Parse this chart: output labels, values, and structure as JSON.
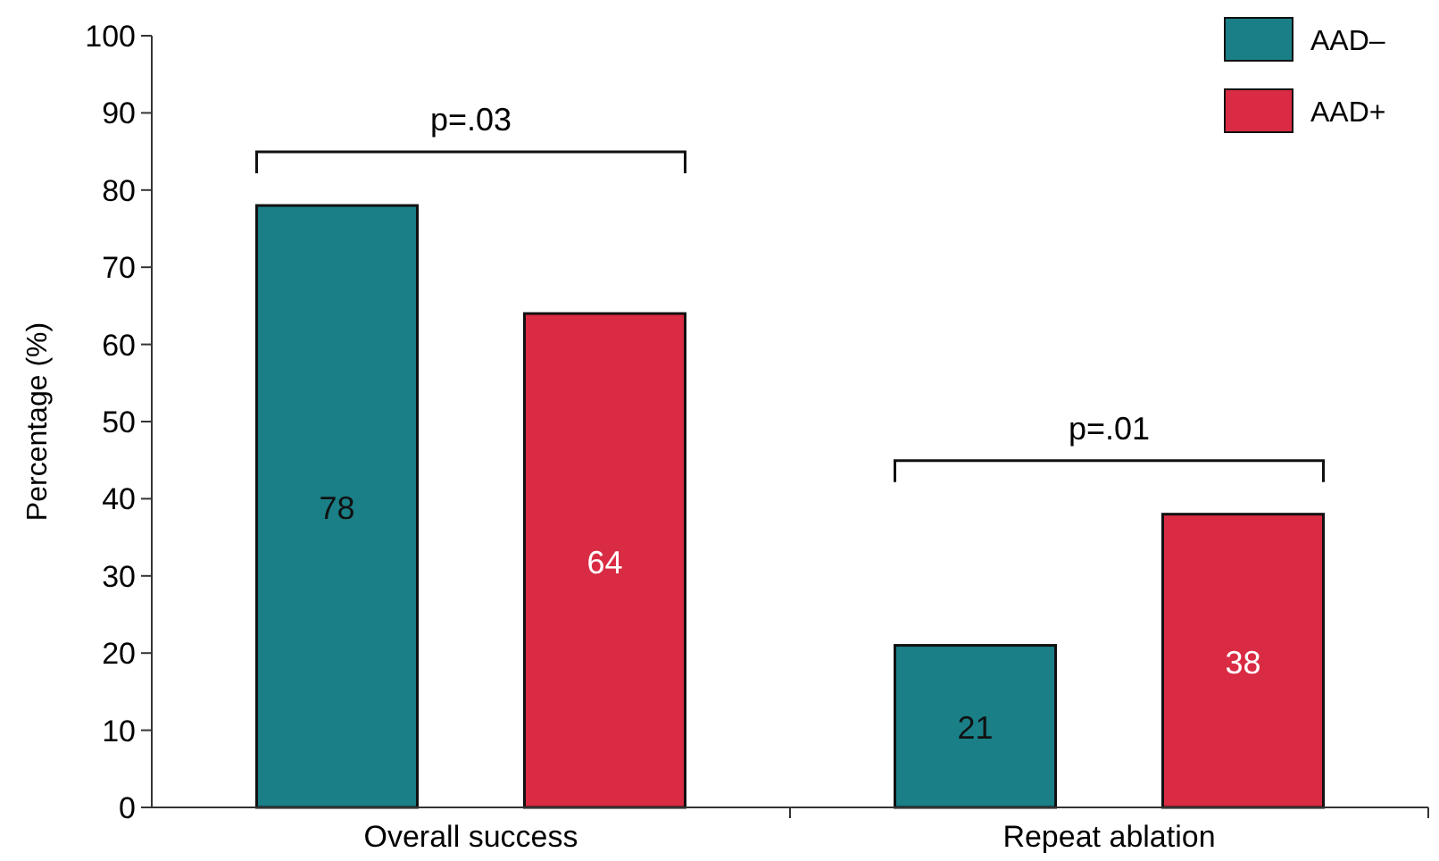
{
  "chart_data": {
    "type": "bar",
    "ylabel": "Percentage (%)",
    "categories": [
      "Overall success",
      "Repeat ablation"
    ],
    "series": [
      {
        "name": "AAD–",
        "color": "#1a7f86",
        "values": [
          78,
          21
        ]
      },
      {
        "name": "AAD+",
        "color": "#d92b43",
        "values": [
          64,
          38
        ]
      }
    ],
    "ylim": [
      0,
      100
    ],
    "yticks": [
      0,
      10,
      20,
      30,
      40,
      50,
      60,
      70,
      80,
      90,
      100
    ],
    "data_labels": true,
    "legend": "top right",
    "annotations": [
      "p=.03",
      "p=.01"
    ]
  }
}
